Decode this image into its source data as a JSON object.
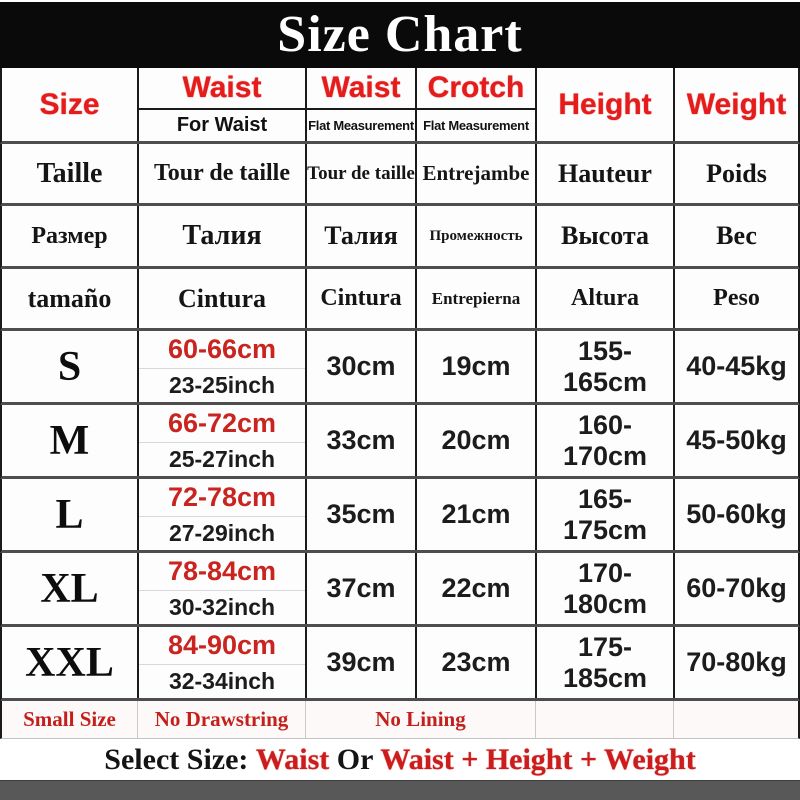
{
  "title": "Size Chart",
  "colors": {
    "banner_bg": "#0a0a0a",
    "header_red": "#e41c1c",
    "data_red": "#c9241f",
    "notes_red": "#c3201c",
    "separator_gray": "#4e4e4e",
    "bottom_bar_gray": "#585858"
  },
  "table": {
    "header": {
      "size": "Size",
      "waist_for": {
        "main": "Waist",
        "sub": "For Waist"
      },
      "waist_flat": {
        "main": "Waist",
        "sub": "Flat Measurement"
      },
      "crotch": {
        "main": "Crotch",
        "sub": "Flat Measurement"
      },
      "height": "Height",
      "weight": "Weight"
    },
    "translation_rows": [
      {
        "cells": [
          "Taille",
          "Tour de taille",
          "Tour de taille",
          "Entrejambe",
          "Hauteur",
          "Poids"
        ]
      },
      {
        "cells": [
          "Размер",
          "Талия",
          "Талия",
          "Промежность",
          "Высота",
          "Вес"
        ]
      },
      {
        "cells": [
          "tamaño",
          "Cintura",
          "Cintura",
          "Entrepierna",
          "Altura",
          "Peso"
        ]
      }
    ],
    "size_rows": [
      {
        "size": "S",
        "waist_cm": "60-66cm",
        "waist_inch": "23-25inch",
        "waist_flat": "30cm",
        "crotch": "19cm",
        "height": "155-165cm",
        "weight": "40-45kg"
      },
      {
        "size": "M",
        "waist_cm": "66-72cm",
        "waist_inch": "25-27inch",
        "waist_flat": "33cm",
        "crotch": "20cm",
        "height": "160-170cm",
        "weight": "45-50kg"
      },
      {
        "size": "L",
        "waist_cm": "72-78cm",
        "waist_inch": "27-29inch",
        "waist_flat": "35cm",
        "crotch": "21cm",
        "height": "165-175cm",
        "weight": "50-60kg"
      },
      {
        "size": "XL",
        "waist_cm": "78-84cm",
        "waist_inch": "30-32inch",
        "waist_flat": "37cm",
        "crotch": "22cm",
        "height": "170-180cm",
        "weight": "60-70kg"
      },
      {
        "size": "XXL",
        "waist_cm": "84-90cm",
        "waist_inch": "32-34inch",
        "waist_flat": "39cm",
        "crotch": "23cm",
        "height": "175-185cm",
        "weight": "70-80kg"
      }
    ],
    "notes_row": {
      "small_size": "Small Size",
      "no_drawstring": "No Drawstring",
      "no_lining": "No Lining"
    },
    "footer": {
      "label": "Select Size: ",
      "option_a": "Waist",
      "connector": " Or ",
      "option_b": "Waist + Height + Weight"
    }
  }
}
